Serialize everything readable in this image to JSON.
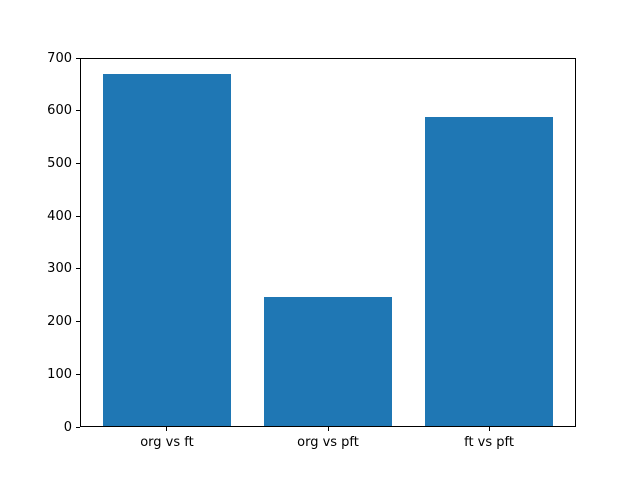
{
  "chart_data": {
    "type": "bar",
    "categories": [
      "org vs ft",
      "org vs pft",
      "ft vs pft"
    ],
    "values": [
      669,
      247,
      589
    ],
    "title": "",
    "xlabel": "",
    "ylabel": "",
    "ylim": [
      0,
      700
    ],
    "yticks": [
      0,
      100,
      200,
      300,
      400,
      500,
      600,
      700
    ],
    "bar_color": "#1f77b4",
    "axes_background": "#ffffff",
    "figure_background": "#ffffff",
    "grid": false,
    "legend": false
  }
}
